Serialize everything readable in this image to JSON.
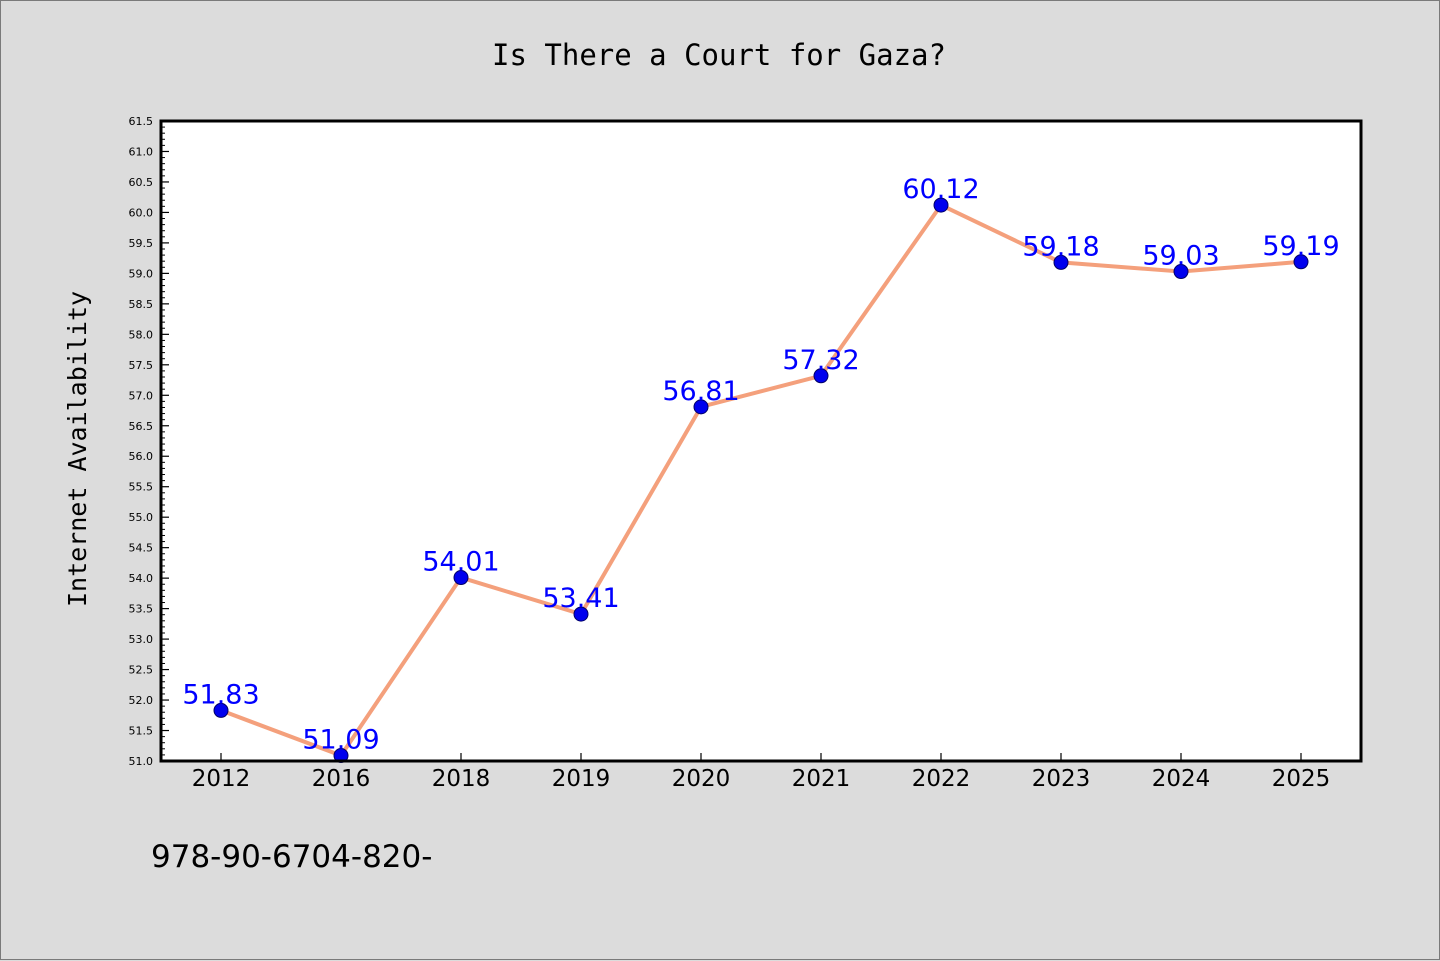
{
  "chart_data": {
    "type": "line",
    "title": "Is There a Court for Gaza?",
    "xlabel": "",
    "ylabel": "Internet Availability",
    "categories": [
      "2012",
      "2016",
      "2018",
      "2019",
      "2020",
      "2021",
      "2022",
      "2023",
      "2024",
      "2025"
    ],
    "series": [
      {
        "values": [
          51.83,
          51.09,
          54.01,
          53.41,
          56.81,
          57.32,
          60.12,
          59.18,
          59.03,
          59.19
        ],
        "data_labels": [
          "51.83",
          "51.09",
          "54.01",
          "53.41",
          "56.81",
          "57.32",
          "60.12",
          "59.18",
          "59.03",
          "59.19"
        ],
        "line_color": "#f4a07c",
        "marker_color": "#0000ee"
      }
    ],
    "ylim": [
      51.0,
      61.5
    ],
    "yticks": [
      "51.0",
      "51.5",
      "52.0",
      "52.5",
      "53.0",
      "53.5",
      "54.0",
      "54.5",
      "55.0",
      "55.5",
      "56.0",
      "56.5",
      "57.0",
      "57.5",
      "58.0",
      "58.5",
      "59.0",
      "59.5",
      "60.0",
      "60.5",
      "61.0",
      "61.5"
    ],
    "grid": false,
    "legend": "none",
    "label_color": "#0000ff",
    "plot_background": "#ffffff",
    "figure_background": "#dcdcdc"
  },
  "footer_text": "978-90-6704-820-"
}
